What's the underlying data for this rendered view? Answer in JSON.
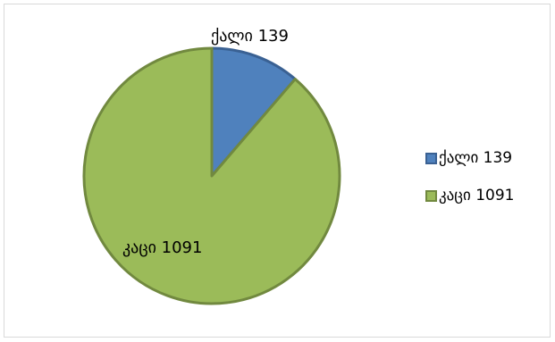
{
  "chart_data": {
    "type": "pie",
    "categories": [
      "ქალი 139",
      "კაცი 1091"
    ],
    "values": [
      139,
      1091
    ],
    "colors": [
      "#4f81bd",
      "#9bbb59"
    ],
    "edge_colors": [
      "#3a6193",
      "#71893f"
    ],
    "data_labels": [
      "ქალი 139",
      "კაცი 1091"
    ],
    "legend_position": "right",
    "start_angle": "12 o'clock, clockwise"
  }
}
